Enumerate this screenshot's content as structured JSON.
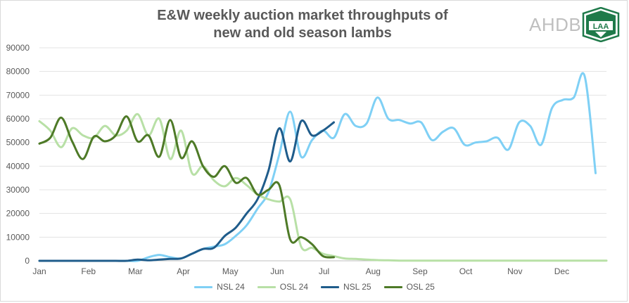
{
  "logos": {
    "ahdb_text": "AHDB",
    "laa_text": "LAA",
    "laa_small_text": "LIVESTOCK"
  },
  "chart_data": {
    "type": "line",
    "title": "E&W weekly auction market throughputs of new and old season lambs",
    "title_lines": [
      "E&W weekly auction market throughputs of",
      "new and old season lambs"
    ],
    "x_unit": "week of year",
    "xlim": [
      1,
      53
    ],
    "x_ticks": [
      {
        "label": "Jan",
        "x": 1
      },
      {
        "label": "Feb",
        "x": 5.5
      },
      {
        "label": "Mar",
        "x": 9.8
      },
      {
        "label": "Apr",
        "x": 14.2
      },
      {
        "label": "May",
        "x": 18.5
      },
      {
        "label": "Jun",
        "x": 22.8
      },
      {
        "label": "Jul",
        "x": 27.1
      },
      {
        "label": "Aug",
        "x": 31.6
      },
      {
        "label": "Sep",
        "x": 35.9
      },
      {
        "label": "Oct",
        "x": 40.1
      },
      {
        "label": "Nov",
        "x": 44.6
      },
      {
        "label": "Dec",
        "x": 48.9
      }
    ],
    "ylim": [
      0,
      90000
    ],
    "y_ticks": [
      0,
      10000,
      20000,
      30000,
      40000,
      50000,
      60000,
      70000,
      80000,
      90000
    ],
    "grid": true,
    "legend_position": "bottom",
    "series": [
      {
        "name": "NSL 24",
        "color": "#7fd0f5",
        "x": [
          1,
          2,
          3,
          4,
          5,
          6,
          7,
          8,
          9,
          10,
          11,
          12,
          13,
          14,
          15,
          16,
          17,
          18,
          19,
          20,
          21,
          22,
          23,
          24,
          25,
          26,
          27,
          28,
          29,
          30,
          31,
          32,
          33,
          34,
          35,
          36,
          37,
          38,
          39,
          40,
          41,
          42,
          43,
          44,
          45,
          46,
          47,
          48,
          49,
          50,
          51,
          52,
          53
        ],
        "values": [
          0,
          0,
          0,
          0,
          0,
          0,
          0,
          0,
          0,
          0,
          1500,
          2500,
          1500,
          1000,
          3000,
          5000,
          6000,
          7000,
          10500,
          15000,
          22000,
          29000,
          45000,
          63000,
          44000,
          51000,
          55000,
          52000,
          62000,
          57000,
          58000,
          69000,
          60000,
          59500,
          58000,
          58500,
          51000,
          54500,
          56000,
          49000,
          50000,
          50500,
          52000,
          47000,
          58500,
          57000,
          49000,
          64500,
          68000,
          69000,
          78000,
          37000,
          null
        ]
      },
      {
        "name": "OSL 24",
        "color": "#b8e0a6",
        "x": [
          1,
          2,
          3,
          4,
          5,
          6,
          7,
          8,
          9,
          10,
          11,
          12,
          13,
          14,
          15,
          16,
          17,
          18,
          19,
          20,
          21,
          22,
          23,
          24,
          25,
          26,
          27,
          28,
          29,
          30,
          31,
          32,
          33,
          34,
          35,
          36,
          37,
          38,
          39,
          40,
          41,
          42,
          43,
          44,
          45,
          46,
          47,
          48,
          49,
          50,
          51,
          52,
          53
        ],
        "values": [
          59000,
          55000,
          48000,
          56000,
          53000,
          52000,
          57000,
          53000,
          55000,
          62000,
          53000,
          60000,
          43000,
          55000,
          37000,
          40000,
          34000,
          31500,
          35000,
          32000,
          28000,
          26000,
          25000,
          26000,
          6000,
          5500,
          3000,
          2000,
          1000,
          800,
          500,
          300,
          200,
          100,
          100,
          100,
          100,
          100,
          100,
          100,
          100,
          100,
          100,
          100,
          100,
          100,
          100,
          100,
          100,
          100,
          100,
          100,
          100
        ]
      },
      {
        "name": "NSL 25",
        "color": "#1f5c8b",
        "x": [
          1,
          2,
          3,
          4,
          5,
          6,
          7,
          8,
          9,
          10,
          11,
          12,
          13,
          14,
          15,
          16,
          17,
          18,
          19,
          20,
          21,
          22,
          23,
          24,
          25,
          26,
          27,
          28
        ],
        "values": [
          0,
          0,
          0,
          0,
          0,
          0,
          0,
          0,
          0,
          500,
          200,
          500,
          800,
          1000,
          3000,
          5000,
          5500,
          10500,
          14000,
          20000,
          26000,
          38000,
          56000,
          42000,
          59000,
          53000,
          55000,
          58500
        ]
      },
      {
        "name": "OSL 25",
        "color": "#4e7a27",
        "x": [
          1,
          2,
          3,
          4,
          5,
          6,
          7,
          8,
          9,
          10,
          11,
          12,
          13,
          14,
          15,
          16,
          17,
          18,
          19,
          20,
          21,
          22,
          23,
          24,
          25,
          26,
          27,
          28
        ],
        "values": [
          49500,
          52000,
          60500,
          50500,
          43000,
          52500,
          50500,
          53000,
          61000,
          50500,
          53000,
          44000,
          59500,
          43500,
          50500,
          40000,
          35500,
          40000,
          33000,
          35000,
          28000,
          30000,
          32000,
          9000,
          10000,
          7000,
          2000,
          1500
        ]
      }
    ]
  }
}
